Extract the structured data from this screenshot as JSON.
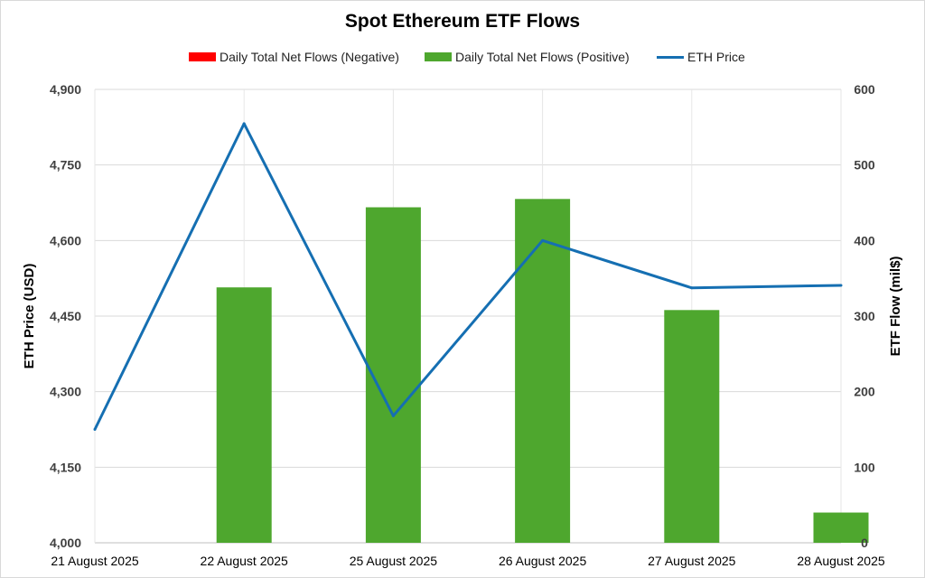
{
  "chart_data": {
    "type": "bar",
    "title": "Spot Ethereum ETF Flows",
    "categories": [
      "21 August 2025",
      "22 August 2025",
      "25 August 2025",
      "26 August 2025",
      "27 August 2025",
      "28 August 2025"
    ],
    "series": [
      {
        "name": "Daily Total Net Flows (Negative)",
        "type": "bar",
        "axis": "right",
        "color": "#ff0000",
        "values": [
          0,
          0,
          0,
          0,
          0,
          0
        ]
      },
      {
        "name": "Daily Total Net Flows (Positive)",
        "type": "bar",
        "axis": "right",
        "color": "#4ea72e",
        "values": [
          0,
          338,
          444,
          455,
          308,
          40
        ]
      },
      {
        "name": "ETH Price",
        "type": "line",
        "axis": "left",
        "color": "#156fb2",
        "values": [
          4225,
          4832,
          4252,
          4600,
          4506,
          4511
        ]
      }
    ],
    "y_left": {
      "label": "ETH Price (USD)",
      "range": [
        4000,
        4900
      ],
      "ticks": [
        "4,000",
        "4,150",
        "4,300",
        "4,450",
        "4,600",
        "4,750",
        "4,900"
      ]
    },
    "y_right": {
      "label": "ETF Flow (mil$)",
      "range": [
        0,
        600
      ],
      "ticks": [
        "0",
        "100",
        "200",
        "300",
        "400",
        "500",
        "600"
      ]
    },
    "grid": true,
    "legend_position": "top"
  }
}
